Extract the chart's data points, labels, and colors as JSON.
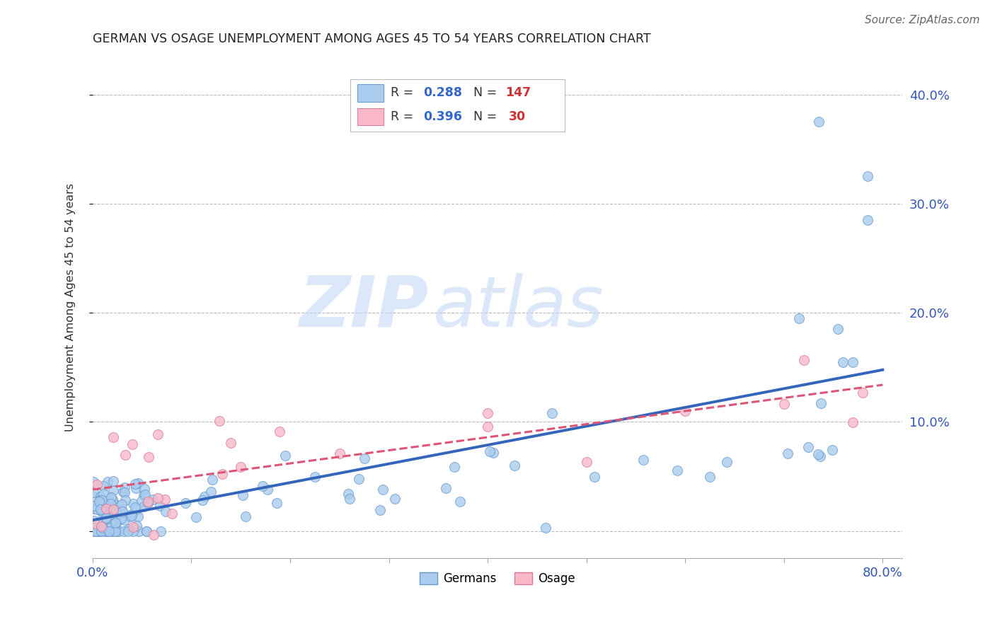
{
  "title": "GERMAN VS OSAGE UNEMPLOYMENT AMONG AGES 45 TO 54 YEARS CORRELATION CHART",
  "source": "Source: ZipAtlas.com",
  "ylabel": "Unemployment Among Ages 45 to 54 years",
  "xlim": [
    0.0,
    0.82
  ],
  "ylim": [
    -0.025,
    0.435
  ],
  "xticks": [
    0.0,
    0.1,
    0.2,
    0.3,
    0.4,
    0.5,
    0.6,
    0.7,
    0.8
  ],
  "yticks": [
    0.0,
    0.1,
    0.2,
    0.3,
    0.4
  ],
  "yticklabels": [
    "",
    "10.0%",
    "20.0%",
    "30.0%",
    "40.0%"
  ],
  "german_color": "#aaccee",
  "german_edge_color": "#6699cc",
  "osage_color": "#f8b8c8",
  "osage_edge_color": "#dd7799",
  "trend_german_color": "#3366bb",
  "trend_osage_color": "#dd5577",
  "watermark_zip": "ZIP",
  "watermark_atlas": "atlas",
  "background_color": "#ffffff",
  "grid_color": "#bbbbbb",
  "title_color": "#222222",
  "label_color": "#333333",
  "tick_color": "#3355bb",
  "source_color": "#666666"
}
